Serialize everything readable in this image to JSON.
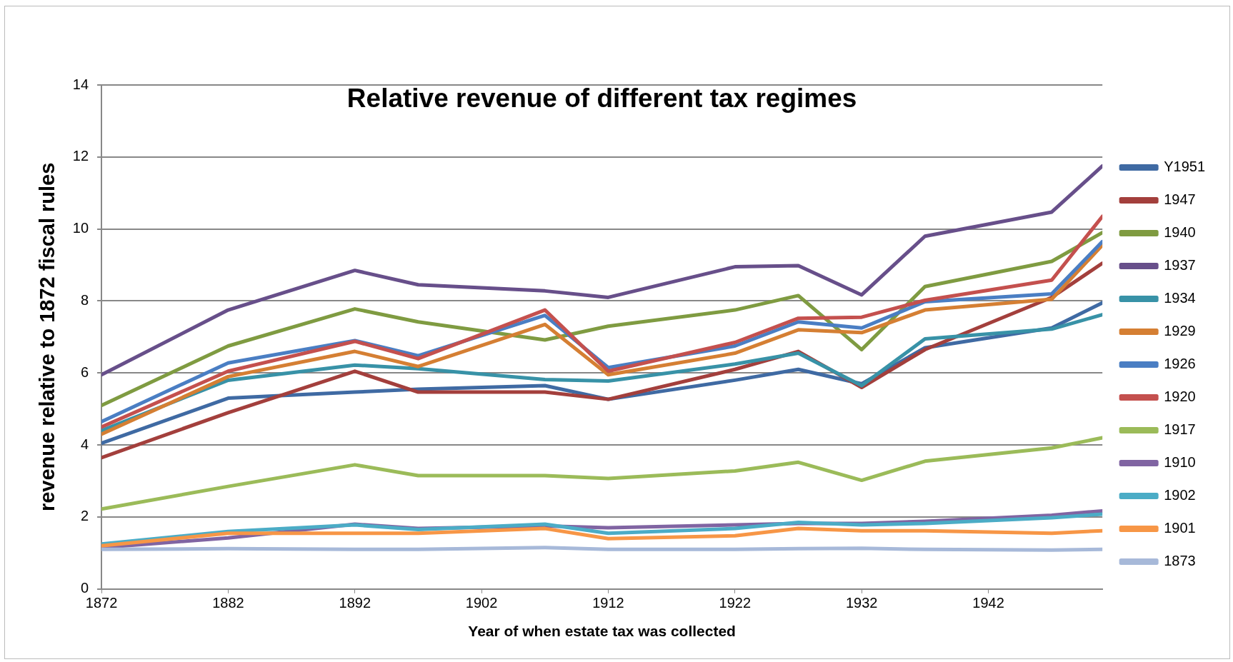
{
  "chart_data": {
    "type": "line",
    "title": "Relative revenue of different tax regimes",
    "xlabel": "Year of when estate tax was collected",
    "ylabel": "revenue relative to 1872 fiscal rules",
    "x": [
      1872,
      1882,
      1892,
      1897,
      1907,
      1912,
      1922,
      1927,
      1932,
      1937,
      1947,
      1951
    ],
    "xlim": [
      1872,
      1951
    ],
    "xticks": [
      1872,
      1882,
      1892,
      1902,
      1912,
      1922,
      1932,
      1942
    ],
    "ylim": [
      0,
      14
    ],
    "yticks": [
      0,
      2,
      4,
      6,
      8,
      10,
      12,
      14
    ],
    "grid": "y",
    "legend": "right",
    "marker": "none",
    "line_style": "solid",
    "series": [
      {
        "name": "Y1951",
        "color": "#3f6aa3",
        "values": [
          4.05,
          5.3,
          5.47,
          5.55,
          5.65,
          5.27,
          5.8,
          6.1,
          5.7,
          6.7,
          7.25,
          7.95
        ]
      },
      {
        "name": "1947",
        "color": "#a33f3c",
        "values": [
          3.65,
          4.9,
          6.05,
          5.47,
          5.47,
          5.27,
          6.1,
          6.6,
          5.6,
          6.65,
          8.1,
          9.05
        ]
      },
      {
        "name": "1940",
        "color": "#7f9b41",
        "values": [
          5.1,
          6.75,
          7.78,
          7.42,
          6.92,
          7.3,
          7.75,
          8.15,
          6.65,
          8.4,
          9.1,
          9.9
        ]
      },
      {
        "name": "1937",
        "color": "#674f8a",
        "values": [
          5.95,
          7.75,
          8.85,
          8.45,
          8.28,
          8.1,
          8.95,
          8.98,
          8.17,
          9.8,
          10.47,
          11.75
        ]
      },
      {
        "name": "1934",
        "color": "#3892a7",
        "values": [
          4.4,
          5.8,
          6.22,
          6.12,
          5.82,
          5.78,
          6.25,
          6.55,
          5.65,
          6.95,
          7.22,
          7.62
        ]
      },
      {
        "name": "1929",
        "color": "#d57f33",
        "values": [
          4.3,
          5.9,
          6.6,
          6.18,
          7.35,
          5.95,
          6.55,
          7.2,
          7.12,
          7.75,
          8.05,
          9.55
        ]
      },
      {
        "name": "1926",
        "color": "#4a7ec3",
        "values": [
          4.65,
          6.28,
          6.9,
          6.48,
          7.6,
          6.15,
          6.75,
          7.42,
          7.25,
          7.98,
          8.2,
          9.65
        ]
      },
      {
        "name": "1920",
        "color": "#c4504e",
        "values": [
          4.5,
          6.05,
          6.88,
          6.4,
          7.75,
          6.05,
          6.85,
          7.52,
          7.55,
          8.02,
          8.58,
          10.35
        ]
      },
      {
        "name": "1917",
        "color": "#9bbb59",
        "values": [
          2.22,
          2.85,
          3.45,
          3.15,
          3.15,
          3.07,
          3.28,
          3.52,
          3.02,
          3.55,
          3.92,
          4.2
        ]
      },
      {
        "name": "1910",
        "color": "#8064a2",
        "values": [
          1.15,
          1.42,
          1.8,
          1.68,
          1.75,
          1.7,
          1.78,
          1.82,
          1.82,
          1.88,
          2.05,
          2.17
        ]
      },
      {
        "name": "1902",
        "color": "#4bacc6",
        "values": [
          1.25,
          1.6,
          1.78,
          1.65,
          1.8,
          1.55,
          1.68,
          1.85,
          1.78,
          1.82,
          1.98,
          2.08
        ]
      },
      {
        "name": "1901",
        "color": "#f79646",
        "values": [
          1.2,
          1.55,
          1.55,
          1.55,
          1.68,
          1.4,
          1.48,
          1.68,
          1.62,
          1.62,
          1.55,
          1.62
        ]
      },
      {
        "name": "1873",
        "color": "#a7b9d9",
        "values": [
          1.1,
          1.12,
          1.1,
          1.1,
          1.15,
          1.1,
          1.1,
          1.12,
          1.13,
          1.1,
          1.08,
          1.1
        ]
      }
    ]
  }
}
